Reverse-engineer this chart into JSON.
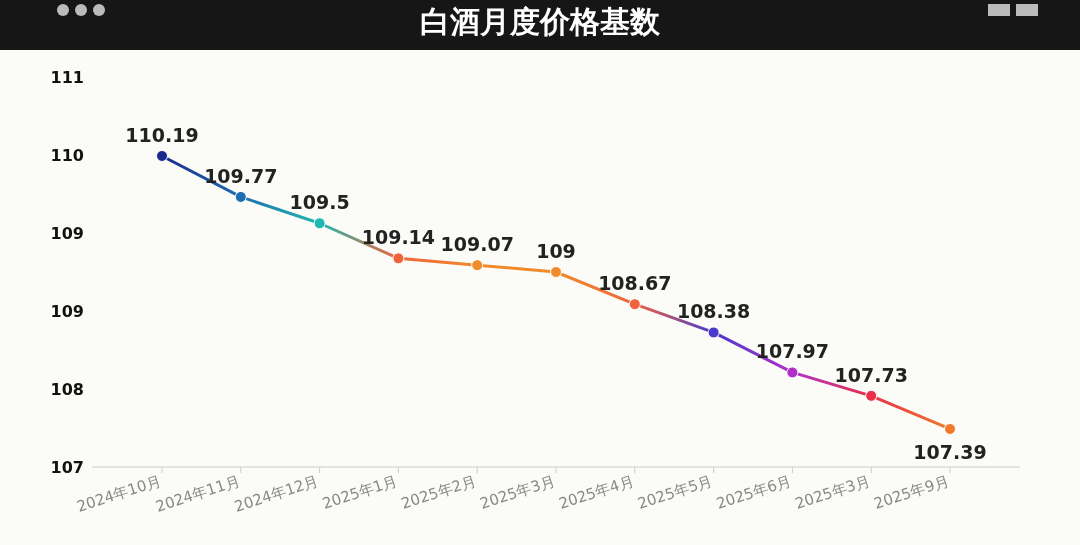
{
  "chart_data": {
    "type": "line",
    "title": "白酒月度价格基数",
    "categories": [
      "2024年10月",
      "2024年11月",
      "2024年12月",
      "2025年1月",
      "2025年2月",
      "2025年3月",
      "2025年4月",
      "2025年5月",
      "2025年6月",
      "2025年3月",
      "2025年9月"
    ],
    "series": [
      {
        "colors": [
          "#1a2a8c",
          "#1f6fb0",
          "#20b8b0",
          "#f0643c",
          "#f08a2a",
          "#f08a2a",
          "#f0643c",
          "#4a3acc",
          "#b030c8",
          "#e8304a",
          "#f07a2a"
        ],
        "values": [
          110.19,
          109.77,
          109.5,
          109.14,
          109.07,
          109,
          108.67,
          108.38,
          107.97,
          107.73,
          107.39
        ]
      }
    ],
    "ylim": [
      107,
      111
    ],
    "yticks": [
      {
        "value": 107,
        "label": "107"
      },
      {
        "value": 107.8,
        "label": "108"
      },
      {
        "value": 108.6,
        "label": "109"
      },
      {
        "value": 109.4,
        "label": "109"
      },
      {
        "value": 110.2,
        "label": "110"
      },
      {
        "value": 111,
        "label": "111"
      }
    ],
    "data_labels": true,
    "marker": "circle",
    "line_style": "solid"
  }
}
